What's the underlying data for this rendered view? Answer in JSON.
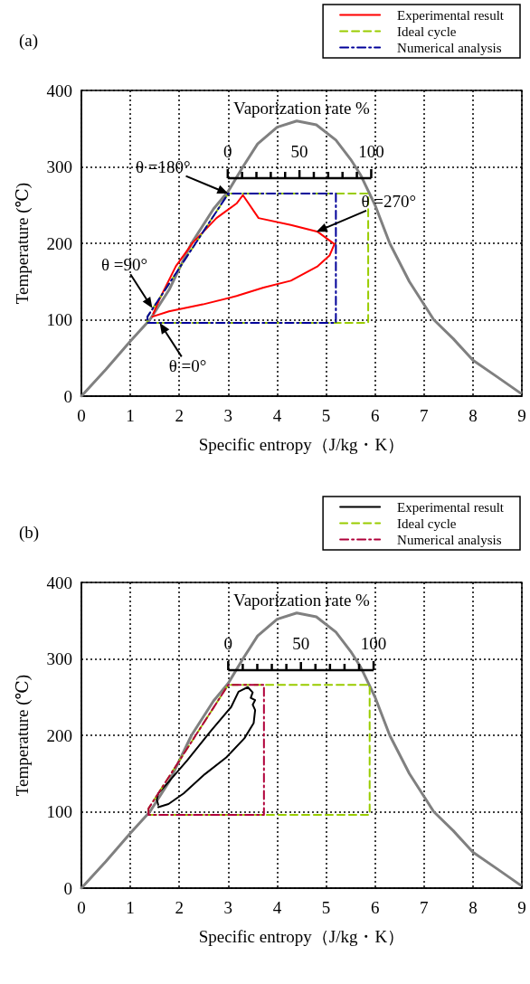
{
  "chart_data": [
    {
      "type": "line",
      "title": "(a)",
      "xlabel": "Specific entropy（J/kg・K）",
      "ylabel": "Temperature (℃)",
      "xlim": [
        0,
        9
      ],
      "xticks": [
        0,
        1,
        2,
        3,
        4,
        5,
        6,
        7,
        8,
        9
      ],
      "ylim": [
        0,
        400
      ],
      "yticks": [
        0,
        100,
        200,
        300,
        400
      ],
      "grid": true,
      "legend": "top right",
      "marker": "none",
      "x2label": "Vaporization rate %",
      "x2lim": [
        -102,
        205
      ],
      "x2ticks": [
        0,
        50,
        100
      ],
      "annotations": [
        {
          "text": "θ =180°",
          "x": 3.0,
          "y": 265
        },
        {
          "text": "θ =90°",
          "x": 1.45,
          "y": 115
        },
        {
          "text": "θ =0°",
          "x": 1.6,
          "y": 96
        },
        {
          "text": "θ =270°",
          "x": 4.8,
          "y": 215
        }
      ],
      "series": [
        {
          "color": "#808080",
          "line_style": "solid",
          "x": [
            0,
            0.5,
            1,
            1.4,
            1.8,
            2.25,
            2.7,
            3.0,
            3.3,
            3.6,
            4.0,
            4.4,
            4.8,
            5.2,
            5.5,
            5.7,
            6.0,
            6.3,
            6.7,
            7.2,
            7.6,
            8.0,
            8.5,
            8.97
          ],
          "values": [
            0,
            35,
            72,
            100,
            140,
            200,
            245,
            268,
            300,
            330,
            352,
            360,
            355,
            335,
            310,
            290,
            250,
            200,
            150,
            100,
            75,
            47,
            25,
            4
          ]
        },
        {
          "name": "Experimental result",
          "color": "#ff0000",
          "line_style": "solid",
          "x": [
            1.45,
            1.79,
            2.48,
            3.17,
            3.72,
            4.28,
            4.83,
            5.07,
            5.17,
            4.83,
            4.28,
            3.62,
            3.3,
            3.17,
            2.76,
            2.28,
            1.93,
            1.59,
            1.47
          ],
          "values": [
            104,
            111,
            120,
            131,
            142,
            151,
            170,
            184,
            199,
            215,
            224,
            233,
            263,
            252,
            233,
            201,
            170,
            126,
            108
          ]
        },
        {
          "name": "Ideal cycle",
          "color": "#99cc00",
          "line_style": "dashed",
          "x": [
            1.35,
            1.35,
            3.0,
            5.86,
            5.86,
            1.35,
            1.35
          ],
          "values": [
            100,
            104,
            265,
            265,
            96,
            96,
            99
          ]
        },
        {
          "name": "Numerical analysis",
          "color": "#000099",
          "line_style": "dashdot",
          "x": [
            1.35,
            1.35,
            3.0,
            5.2,
            5.2,
            1.35,
            1.35
          ],
          "values": [
            100,
            104,
            265,
            265,
            96,
            96,
            99
          ]
        }
      ]
    },
    {
      "type": "line",
      "title": "(b)",
      "xlabel": "Specific entropy（J/kg・K）",
      "ylabel": "Temperature (℃)",
      "xlim": [
        0,
        9
      ],
      "xticks": [
        0,
        1,
        2,
        3,
        4,
        5,
        6,
        7,
        8,
        9
      ],
      "ylim": [
        0,
        400
      ],
      "yticks": [
        0,
        100,
        200,
        300,
        400
      ],
      "grid": true,
      "legend": "top right",
      "marker": "none",
      "x2label": "Vaporization rate %",
      "x2lim": [
        -101,
        202
      ],
      "x2ticks": [
        0,
        50,
        100
      ],
      "series": [
        {
          "color": "#808080",
          "line_style": "solid",
          "x": [
            0,
            0.5,
            1,
            1.4,
            1.8,
            2.25,
            2.7,
            3.0,
            3.3,
            3.6,
            4.0,
            4.4,
            4.8,
            5.2,
            5.5,
            5.7,
            6.0,
            6.3,
            6.7,
            7.2,
            7.6,
            8.0,
            8.5,
            8.97
          ],
          "values": [
            0,
            35,
            72,
            100,
            140,
            200,
            245,
            268,
            300,
            330,
            352,
            360,
            355,
            335,
            310,
            290,
            250,
            200,
            150,
            100,
            75,
            47,
            25,
            4
          ]
        },
        {
          "name": "Experimental result",
          "color": "#000000",
          "line_style": "solid",
          "x": [
            1.57,
            1.78,
            2.09,
            2.52,
            2.96,
            3.33,
            3.52,
            3.55,
            3.5,
            3.55,
            3.46,
            3.5,
            3.4,
            3.21,
            3.06,
            2.65,
            2.16,
            1.78,
            1.57,
            1.54,
            1.57
          ],
          "values": [
            106,
            110,
            124,
            149,
            171,
            196,
            216,
            233,
            240,
            246,
            249,
            256,
            263,
            257,
            237,
            206,
            167,
            139,
            124,
            116,
            109
          ]
        },
        {
          "name": "Ideal cycle",
          "color": "#99cc00",
          "line_style": "dashed",
          "x": [
            1.37,
            1.37,
            3.0,
            5.89,
            5.89,
            1.37,
            1.37
          ],
          "values": [
            100,
            104,
            266,
            266,
            96,
            96,
            99
          ]
        },
        {
          "name": "Numerical analysis",
          "color": "#b0003a",
          "line_style": "dashdot",
          "x": [
            1.37,
            1.37,
            3.0,
            3.73,
            3.73,
            1.37,
            1.37
          ],
          "values": [
            100,
            104,
            266,
            266,
            96,
            96,
            99
          ]
        }
      ]
    }
  ]
}
